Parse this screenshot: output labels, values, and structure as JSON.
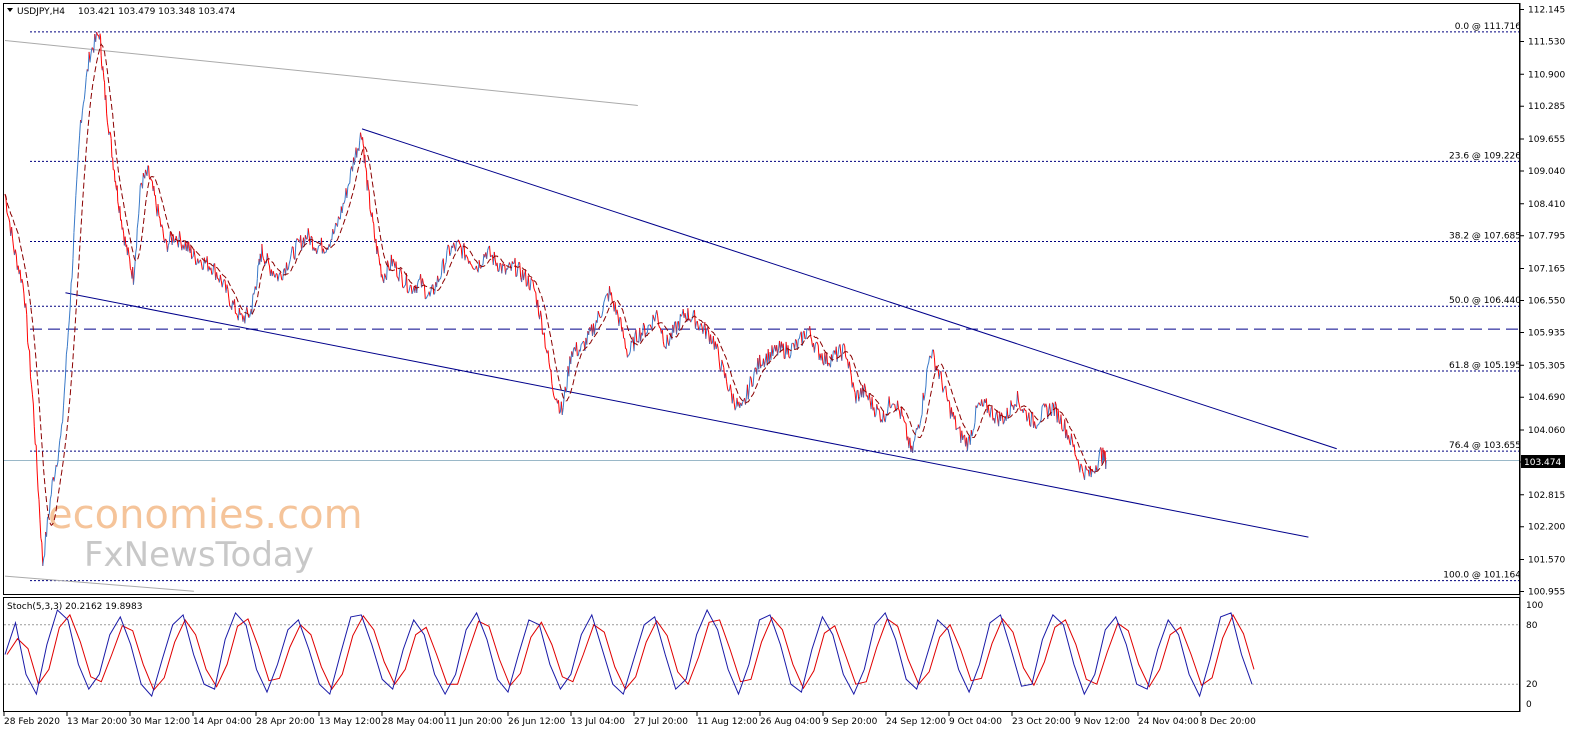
{
  "title": {
    "symbol_tf": "USDJPY,H4",
    "ohlc": "103.421 103.479 103.348 103.474"
  },
  "watermark": {
    "line1": "economies.com",
    "line2": "FxNewsToday"
  },
  "colors": {
    "bear": "#ff0000",
    "bull": "#3a7ac8",
    "ma": "#8b0000",
    "fib": "#000080",
    "trend": "#00008b",
    "mid": "#00008b",
    "gray": "#aaaaaa",
    "stoch_main": "#1a1aa8",
    "stoch_signal": "#e00000",
    "price_line": "#9ab8c8",
    "watermark_orange": "#f5c49a",
    "watermark_gray": "#c8c8c8"
  },
  "chart_data": {
    "type": "line",
    "instrument": "USDJPY",
    "timeframe": "H4",
    "x_labels": [
      "28 Feb 2020",
      "13 Mar 20:00",
      "30 Mar 12:00",
      "14 Apr 04:00",
      "28 Apr 20:00",
      "13 May 12:00",
      "28 May 04:00",
      "11 Jun 20:00",
      "26 Jun 12:00",
      "13 Jul 04:00",
      "27 Jul 20:00",
      "11 Aug 12:00",
      "26 Aug 04:00",
      "9 Sep 20:00",
      "24 Sep 12:00",
      "9 Oct 04:00",
      "23 Oct 20:00",
      "9 Nov 12:00",
      "24 Nov 04:00",
      "8 Dec 20:00"
    ],
    "y_ticks": [
      "112.145",
      "111.530",
      "110.900",
      "110.285",
      "109.655",
      "109.040",
      "108.410",
      "107.795",
      "107.165",
      "106.550",
      "105.935",
      "105.305",
      "104.690",
      "104.060",
      "103.445",
      "102.815",
      "102.200",
      "101.570",
      "100.955"
    ],
    "ylim": [
      100.955,
      112.145
    ],
    "current_price": "103.474",
    "fib_levels": [
      {
        "label": "0.0 @ 111.716",
        "price": 111.716
      },
      {
        "label": "23.6 @ 109.226",
        "price": 109.226
      },
      {
        "label": "38.2 @ 107.685",
        "price": 107.685
      },
      {
        "label": "50.0 @ 106.440",
        "price": 106.44
      },
      {
        "label": "61.8 @ 105.195",
        "price": 105.195
      },
      {
        "label": "76.4 @ 103.655",
        "price": 103.655
      },
      {
        "label": "100.0 @ 101.164",
        "price": 101.164
      }
    ],
    "mid_level": 106.0,
    "price_path": [
      {
        "x": 0,
        "y": 108.6
      },
      {
        "x": 0.5,
        "y": 107.5
      },
      {
        "x": 1,
        "y": 106.8
      },
      {
        "x": 1.5,
        "y": 104.5
      },
      {
        "x": 2,
        "y": 101.5
      },
      {
        "x": 2.5,
        "y": 103.0
      },
      {
        "x": 3,
        "y": 104.0
      },
      {
        "x": 3.5,
        "y": 106.8
      },
      {
        "x": 4,
        "y": 110.0
      },
      {
        "x": 4.5,
        "y": 111.3
      },
      {
        "x": 5,
        "y": 111.7
      },
      {
        "x": 5.3,
        "y": 110.5
      },
      {
        "x": 5.7,
        "y": 109.3
      },
      {
        "x": 6,
        "y": 108.5
      },
      {
        "x": 6.4,
        "y": 107.6
      },
      {
        "x": 6.8,
        "y": 107.0
      },
      {
        "x": 7.2,
        "y": 108.8
      },
      {
        "x": 7.6,
        "y": 109.0
      },
      {
        "x": 8,
        "y": 108.4
      },
      {
        "x": 8.5,
        "y": 107.6
      },
      {
        "x": 9,
        "y": 107.8
      },
      {
        "x": 9.6,
        "y": 107.6
      },
      {
        "x": 10,
        "y": 107.4
      },
      {
        "x": 10.5,
        "y": 107.3
      },
      {
        "x": 11,
        "y": 107.2
      },
      {
        "x": 11.5,
        "y": 106.9
      },
      {
        "x": 12,
        "y": 106.5
      },
      {
        "x": 12.5,
        "y": 106.2
      },
      {
        "x": 13,
        "y": 106.3
      },
      {
        "x": 13.3,
        "y": 106.9
      },
      {
        "x": 13.6,
        "y": 107.5
      },
      {
        "x": 14,
        "y": 107.2
      },
      {
        "x": 14.5,
        "y": 107.0
      },
      {
        "x": 15,
        "y": 107.3
      },
      {
        "x": 15.5,
        "y": 107.6
      },
      {
        "x": 16,
        "y": 107.8
      },
      {
        "x": 16.5,
        "y": 107.6
      },
      {
        "x": 17,
        "y": 107.6
      },
      {
        "x": 17.5,
        "y": 107.9
      },
      {
        "x": 18,
        "y": 108.5
      },
      {
        "x": 18.5,
        "y": 109.3
      },
      {
        "x": 18.9,
        "y": 109.8
      },
      {
        "x": 19.2,
        "y": 108.7
      },
      {
        "x": 19.6,
        "y": 107.7
      },
      {
        "x": 20,
        "y": 107.0
      },
      {
        "x": 20.5,
        "y": 107.3
      },
      {
        "x": 21,
        "y": 107.0
      },
      {
        "x": 21.5,
        "y": 106.8
      },
      {
        "x": 22,
        "y": 106.9
      },
      {
        "x": 22.5,
        "y": 106.6
      },
      {
        "x": 23,
        "y": 107.0
      },
      {
        "x": 23.5,
        "y": 107.5
      },
      {
        "x": 24,
        "y": 107.6
      },
      {
        "x": 24.5,
        "y": 107.4
      },
      {
        "x": 25,
        "y": 107.2
      },
      {
        "x": 25.5,
        "y": 107.5
      },
      {
        "x": 26,
        "y": 107.3
      },
      {
        "x": 26.5,
        "y": 107.1
      },
      {
        "x": 27,
        "y": 107.2
      },
      {
        "x": 27.5,
        "y": 107.0
      },
      {
        "x": 28,
        "y": 106.8
      },
      {
        "x": 28.5,
        "y": 106.0
      },
      {
        "x": 29,
        "y": 104.9
      },
      {
        "x": 29.5,
        "y": 104.4
      },
      {
        "x": 30,
        "y": 105.6
      },
      {
        "x": 30.5,
        "y": 105.6
      },
      {
        "x": 31,
        "y": 105.9
      },
      {
        "x": 31.5,
        "y": 106.3
      },
      {
        "x": 32,
        "y": 106.7
      },
      {
        "x": 32.5,
        "y": 106.2
      },
      {
        "x": 33,
        "y": 105.5
      },
      {
        "x": 33.5,
        "y": 105.9
      },
      {
        "x": 34,
        "y": 106.0
      },
      {
        "x": 34.5,
        "y": 106.3
      },
      {
        "x": 35,
        "y": 105.7
      },
      {
        "x": 35.5,
        "y": 106.0
      },
      {
        "x": 36,
        "y": 106.3
      },
      {
        "x": 36.5,
        "y": 106.2
      },
      {
        "x": 37,
        "y": 106.0
      },
      {
        "x": 37.5,
        "y": 105.8
      },
      {
        "x": 38,
        "y": 105.2
      },
      {
        "x": 38.5,
        "y": 104.7
      },
      {
        "x": 39,
        "y": 104.4
      },
      {
        "x": 39.5,
        "y": 105.0
      },
      {
        "x": 40,
        "y": 105.4
      },
      {
        "x": 40.5,
        "y": 105.5
      },
      {
        "x": 41,
        "y": 105.6
      },
      {
        "x": 41.5,
        "y": 105.6
      },
      {
        "x": 42,
        "y": 105.7
      },
      {
        "x": 42.5,
        "y": 106.0
      },
      {
        "x": 43,
        "y": 105.6
      },
      {
        "x": 43.5,
        "y": 105.4
      },
      {
        "x": 44,
        "y": 105.5
      },
      {
        "x": 44.5,
        "y": 105.6
      },
      {
        "x": 45,
        "y": 104.7
      },
      {
        "x": 45.5,
        "y": 104.8
      },
      {
        "x": 46,
        "y": 104.5
      },
      {
        "x": 46.5,
        "y": 104.3
      },
      {
        "x": 47,
        "y": 104.7
      },
      {
        "x": 47.5,
        "y": 104.3
      },
      {
        "x": 48,
        "y": 103.6
      },
      {
        "x": 48.5,
        "y": 104.4
      },
      {
        "x": 49,
        "y": 105.6
      },
      {
        "x": 49.5,
        "y": 105.1
      },
      {
        "x": 50,
        "y": 104.5
      },
      {
        "x": 50.5,
        "y": 104.0
      },
      {
        "x": 51,
        "y": 103.8
      },
      {
        "x": 51.5,
        "y": 104.5
      },
      {
        "x": 52,
        "y": 104.5
      },
      {
        "x": 52.5,
        "y": 104.3
      },
      {
        "x": 53,
        "y": 104.3
      },
      {
        "x": 53.5,
        "y": 104.7
      },
      {
        "x": 54,
        "y": 104.4
      },
      {
        "x": 54.5,
        "y": 104.2
      },
      {
        "x": 55,
        "y": 104.4
      },
      {
        "x": 55.5,
        "y": 104.5
      },
      {
        "x": 56,
        "y": 104.2
      },
      {
        "x": 56.5,
        "y": 103.8
      },
      {
        "x": 57,
        "y": 103.3
      },
      {
        "x": 57.5,
        "y": 103.2
      },
      {
        "x": 58,
        "y": 103.6
      },
      {
        "x": 58.3,
        "y": 103.474
      }
    ],
    "stoch_params": "Stoch(5,3,3) 20.2162 19.8983",
    "stoch_ticks": [
      "100",
      "80",
      "20",
      "0"
    ],
    "stoch_levels": [
      80,
      20
    ],
    "stoch_main": [
      50,
      82,
      30,
      10,
      60,
      95,
      85,
      40,
      15,
      30,
      70,
      88,
      60,
      20,
      8,
      45,
      80,
      90,
      50,
      20,
      15,
      65,
      92,
      80,
      35,
      12,
      40,
      75,
      85,
      55,
      20,
      10,
      50,
      88,
      90,
      60,
      25,
      15,
      55,
      85,
      70,
      30,
      10,
      30,
      75,
      92,
      65,
      25,
      12,
      50,
      85,
      80,
      40,
      15,
      30,
      70,
      90,
      55,
      20,
      10,
      45,
      80,
      88,
      50,
      15,
      25,
      70,
      95,
      75,
      35,
      10,
      40,
      85,
      90,
      60,
      20,
      12,
      55,
      88,
      70,
      30,
      10,
      35,
      80,
      92,
      65,
      25,
      15,
      50,
      85,
      75,
      35,
      12,
      40,
      82,
      90,
      55,
      18,
      20,
      65,
      90,
      80,
      40,
      10,
      30,
      75,
      88,
      60,
      20,
      15,
      55,
      85,
      70,
      30,
      8,
      45,
      88,
      92,
      50,
      20
    ]
  }
}
